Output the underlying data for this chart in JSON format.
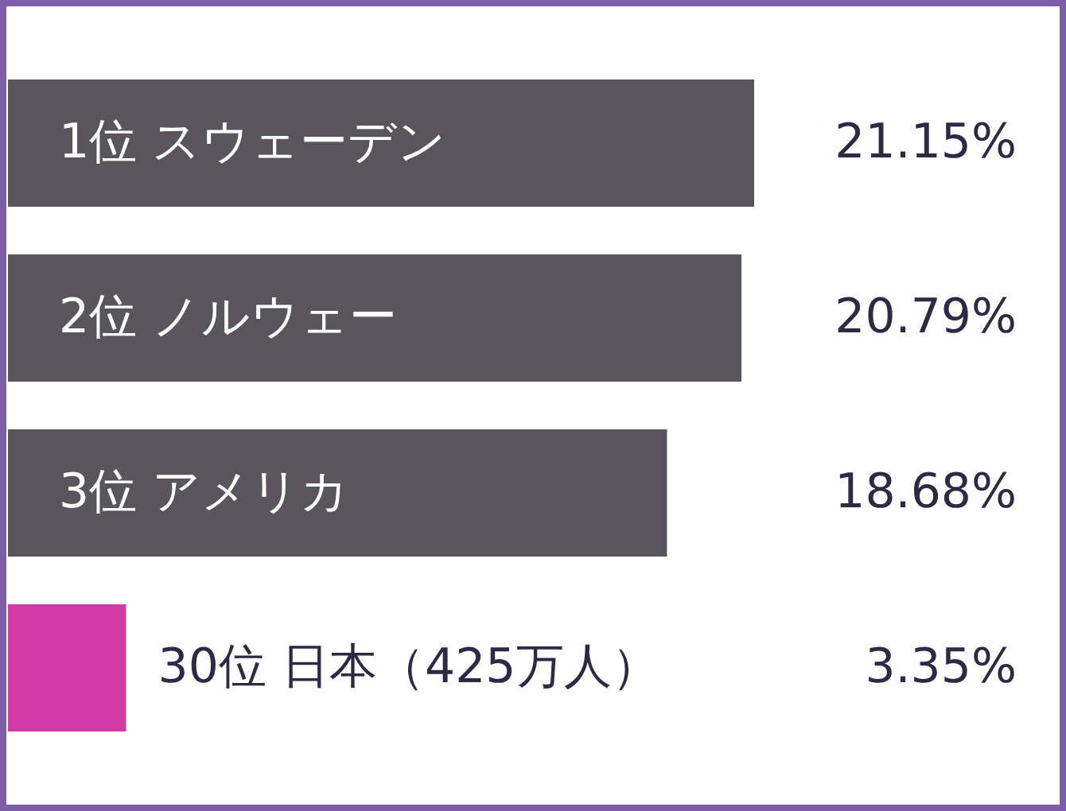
{
  "chart_data": {
    "type": "bar",
    "orientation": "horizontal",
    "categories": [
      "1位  スウェーデン",
      "2位  ノルウェー",
      "3位  アメリカ",
      "30位  日本（425万人）"
    ],
    "values": [
      21.15,
      20.79,
      18.68,
      3.35
    ],
    "colors": [
      "#58565c",
      "#58565c",
      "#58565c",
      "#d43aa3"
    ],
    "value_labels": [
      "21.15%",
      "20.79%",
      "18.68%",
      "3.35%"
    ]
  }
}
